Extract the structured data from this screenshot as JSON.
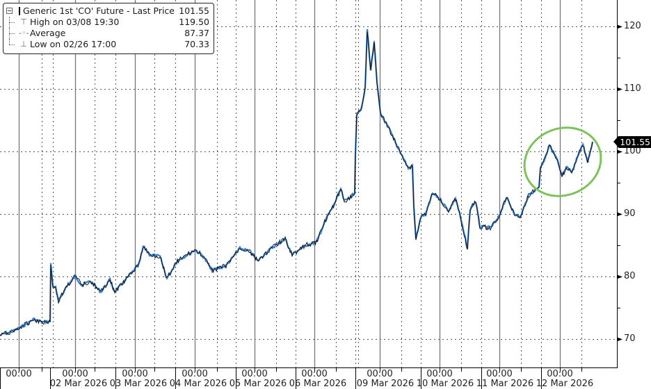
{
  "legend": {
    "series": {
      "label": "Generic 1st 'CO' Future - Last Price",
      "value": "101.55"
    },
    "high": {
      "label": "High on 03/08 19:30",
      "value": "119.50"
    },
    "average": {
      "label": "Average",
      "value": "87.37"
    },
    "low": {
      "label": "Low on 02/26 17:00",
      "value": "70.33"
    }
  },
  "price_tag": "101.55",
  "y_axis": {
    "ticks": [
      "120",
      "110",
      "100",
      "90",
      "80",
      "70"
    ]
  },
  "x_axis": {
    "time_ticks": [
      "00:00",
      "00:00",
      "00:00",
      "00:00",
      "00:00",
      "00:00",
      "00:00",
      "00:00",
      "00:00",
      "00:00"
    ],
    "date_labels": [
      "02 Mar 2026",
      "03 Mar 2026",
      "04 Mar 2026",
      "05 Mar 2026",
      "06 Mar 2026",
      "09 Mar 2026",
      "10 Mar 2026",
      "11 Mar 2026",
      "12 Mar 2026"
    ]
  },
  "colors": {
    "line_dark": "#111111",
    "line_blue": "#2f7fd6",
    "highlight_ellipse": "#7dc35a",
    "price_tag_bg": "#000000"
  },
  "chart_data": {
    "type": "line",
    "title": "Generic 1st 'CO' Future - Last Price",
    "xlabel": "",
    "ylabel": "",
    "ylim": [
      65,
      124
    ],
    "grid": true,
    "legend_position": "top-left",
    "y_ticks": [
      70,
      80,
      90,
      100,
      110,
      120
    ],
    "x_tick_labels": [
      "00:00",
      "00:00 02 Mar 2026",
      "00:00 03 Mar 2026",
      "00:00 04 Mar 2026",
      "00:00 05 Mar 2026",
      "00:00 06 Mar 2026",
      "00:00 09 Mar 2026",
      "00:00 10 Mar 2026",
      "00:00 11 Mar 2026",
      "00:00 12 Mar 2026"
    ],
    "summary": {
      "last": 101.55,
      "high": 119.5,
      "high_time": "03/08 19:30",
      "average": 87.37,
      "low": 70.33,
      "low_time": "02/26 17:00"
    },
    "annotation": "green ellipse highlighting 12 Mar 2026 rally near 100",
    "series": [
      {
        "name": "Generic 1st 'CO' Future - Last Price",
        "points": [
          [
            0,
            70.6
          ],
          [
            20,
            71.3
          ],
          [
            40,
            72.5
          ],
          [
            48,
            73.2
          ],
          [
            60,
            72.7
          ],
          [
            72,
            72.8
          ],
          [
            73,
            82.0
          ],
          [
            76,
            78.5
          ],
          [
            80,
            78.2
          ],
          [
            84,
            76.0
          ],
          [
            95,
            78.3
          ],
          [
            108,
            80.0
          ],
          [
            118,
            78.6
          ],
          [
            130,
            79.3
          ],
          [
            145,
            77.5
          ],
          [
            158,
            79.5
          ],
          [
            165,
            77.5
          ],
          [
            185,
            80.0
          ],
          [
            200,
            82.0
          ],
          [
            206,
            84.8
          ],
          [
            215,
            83.5
          ],
          [
            230,
            83.2
          ],
          [
            240,
            79.7
          ],
          [
            255,
            82.5
          ],
          [
            280,
            84.2
          ],
          [
            290,
            83.5
          ],
          [
            305,
            81.0
          ],
          [
            325,
            81.7
          ],
          [
            345,
            84.5
          ],
          [
            360,
            84.0
          ],
          [
            370,
            82.5
          ],
          [
            390,
            84.5
          ],
          [
            410,
            86.0
          ],
          [
            420,
            83.5
          ],
          [
            440,
            85.0
          ],
          [
            455,
            85.5
          ],
          [
            470,
            89.5
          ],
          [
            478,
            91.0
          ],
          [
            490,
            94.0
          ],
          [
            495,
            92.0
          ],
          [
            510,
            93.3
          ],
          [
            511,
            99.5
          ],
          [
            513,
            106.0
          ],
          [
            520,
            107.0
          ],
          [
            525,
            110.0
          ],
          [
            528,
            119.5
          ],
          [
            533,
            113.0
          ],
          [
            538,
            117.5
          ],
          [
            542,
            111.0
          ],
          [
            547,
            106.0
          ],
          [
            555,
            104.5
          ],
          [
            560,
            103.5
          ],
          [
            570,
            101.0
          ],
          [
            580,
            99.0
          ],
          [
            587,
            97.3
          ],
          [
            593,
            97.7
          ],
          [
            595,
            91.0
          ],
          [
            598,
            86.0
          ],
          [
            605,
            89.5
          ],
          [
            612,
            90.0
          ],
          [
            622,
            93.3
          ],
          [
            632,
            92.5
          ],
          [
            645,
            90.5
          ],
          [
            655,
            92.5
          ],
          [
            662,
            89.5
          ],
          [
            672,
            84.5
          ],
          [
            676,
            90.8
          ],
          [
            684,
            92.0
          ],
          [
            690,
            88.0
          ],
          [
            705,
            87.8
          ],
          [
            715,
            89.0
          ],
          [
            728,
            92.6
          ],
          [
            740,
            90.0
          ],
          [
            748,
            89.5
          ],
          [
            760,
            93.0
          ],
          [
            775,
            94.3
          ],
          [
            777,
            97.5
          ],
          [
            782,
            98.5
          ],
          [
            790,
            101.0
          ],
          [
            800,
            99.0
          ],
          [
            808,
            96.0
          ],
          [
            815,
            97.5
          ],
          [
            822,
            96.5
          ],
          [
            832,
            99.7
          ],
          [
            838,
            101.2
          ],
          [
            845,
            98.2
          ],
          [
            852,
            101.55
          ]
        ]
      }
    ]
  }
}
